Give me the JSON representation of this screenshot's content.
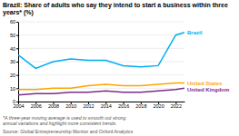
{
  "chart_data": {
    "type": "line",
    "title": "Brazil: Share of adults who say they intend to start a business within three years* (%)",
    "footnote": "*A three-year moving average is used to smooth out strong\nannual variations and highlight more consistent trends.",
    "source": "Source: Global Entrepreneurship Monitor and Oxford Analytics",
    "x": [
      2004,
      2006,
      2008,
      2010,
      2012,
      2014,
      2016,
      2018,
      2020,
      2022,
      2023
    ],
    "series": [
      {
        "name": "Brazil",
        "color": "#00AEEF",
        "values": [
          35,
          25,
          30,
          32,
          31,
          31,
          27,
          26,
          27,
          50,
          52
        ]
      },
      {
        "name": "United States",
        "color": "#FFA500",
        "values": [
          9,
          9,
          10,
          10,
          12,
          13,
          12,
          12,
          13,
          14,
          14
        ]
      },
      {
        "name": "United Kingdom",
        "color": "#7B2D8B",
        "values": [
          5,
          6,
          6,
          7,
          7,
          8,
          7,
          7,
          8,
          9,
          10
        ]
      }
    ],
    "xlim": [
      2004,
      2023
    ],
    "xticks": [
      2004,
      2006,
      2008,
      2010,
      2012,
      2014,
      2016,
      2018,
      2020,
      2022
    ],
    "ylim": [
      0,
      60
    ],
    "yticks": [
      0,
      10,
      20,
      30,
      40,
      50,
      60
    ],
    "grid": true
  }
}
